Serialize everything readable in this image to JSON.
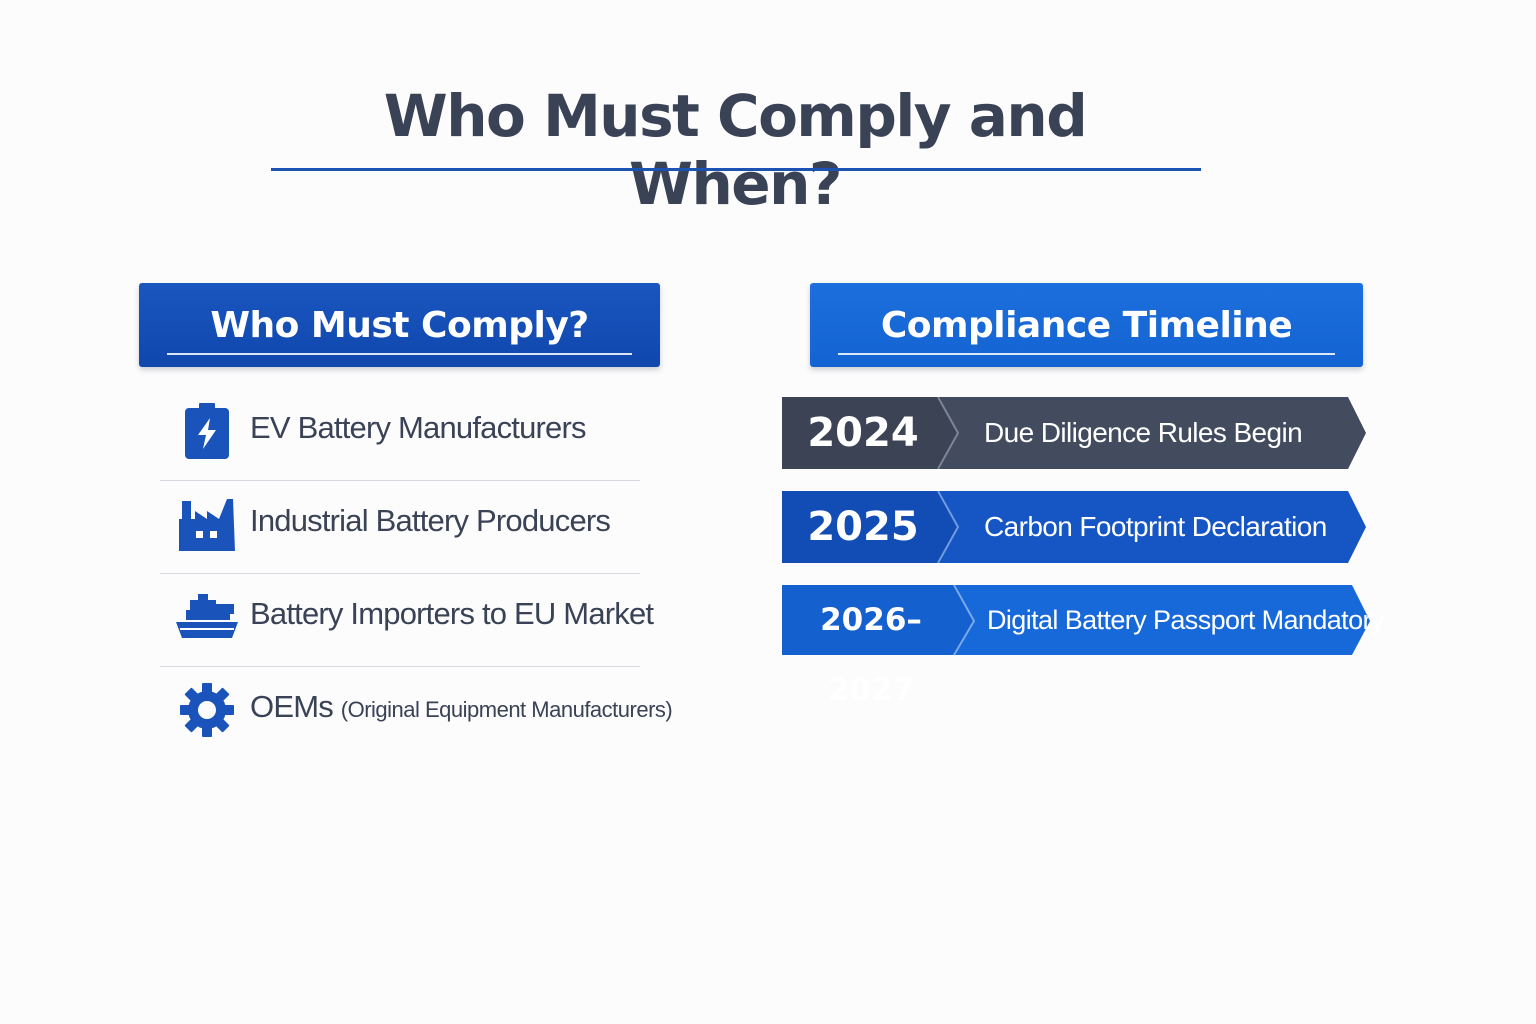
{
  "title": "Who Must Comply and When?",
  "colors": {
    "accent": "#1c52b2",
    "text": "#3a4256",
    "dark_band": "#434b5e",
    "mid_band": "#1556c4",
    "light_band": "#1769da"
  },
  "left_panel": {
    "header": "Who Must Comply?",
    "items": [
      {
        "label": "EV Battery Manufacturers",
        "sub": "",
        "icon": "battery-bolt-icon"
      },
      {
        "label": "Industrial Battery Producers",
        "sub": "",
        "icon": "factory-icon"
      },
      {
        "label": "Battery Importers to EU Market",
        "sub": "",
        "icon": "cargo-ship-icon"
      },
      {
        "label": "OEMs",
        "sub": "(Original Equipment Manufacturers)",
        "icon": "gear-icon"
      }
    ]
  },
  "right_panel": {
    "header": "Compliance Timeline",
    "entries": [
      {
        "year": "2024",
        "event": "Due Diligence Rules Begin"
      },
      {
        "year": "2025",
        "event": "Carbon Footprint Declaration"
      },
      {
        "year": "2026–2027",
        "event": "Digital Battery Passport Mandatory"
      }
    ]
  }
}
